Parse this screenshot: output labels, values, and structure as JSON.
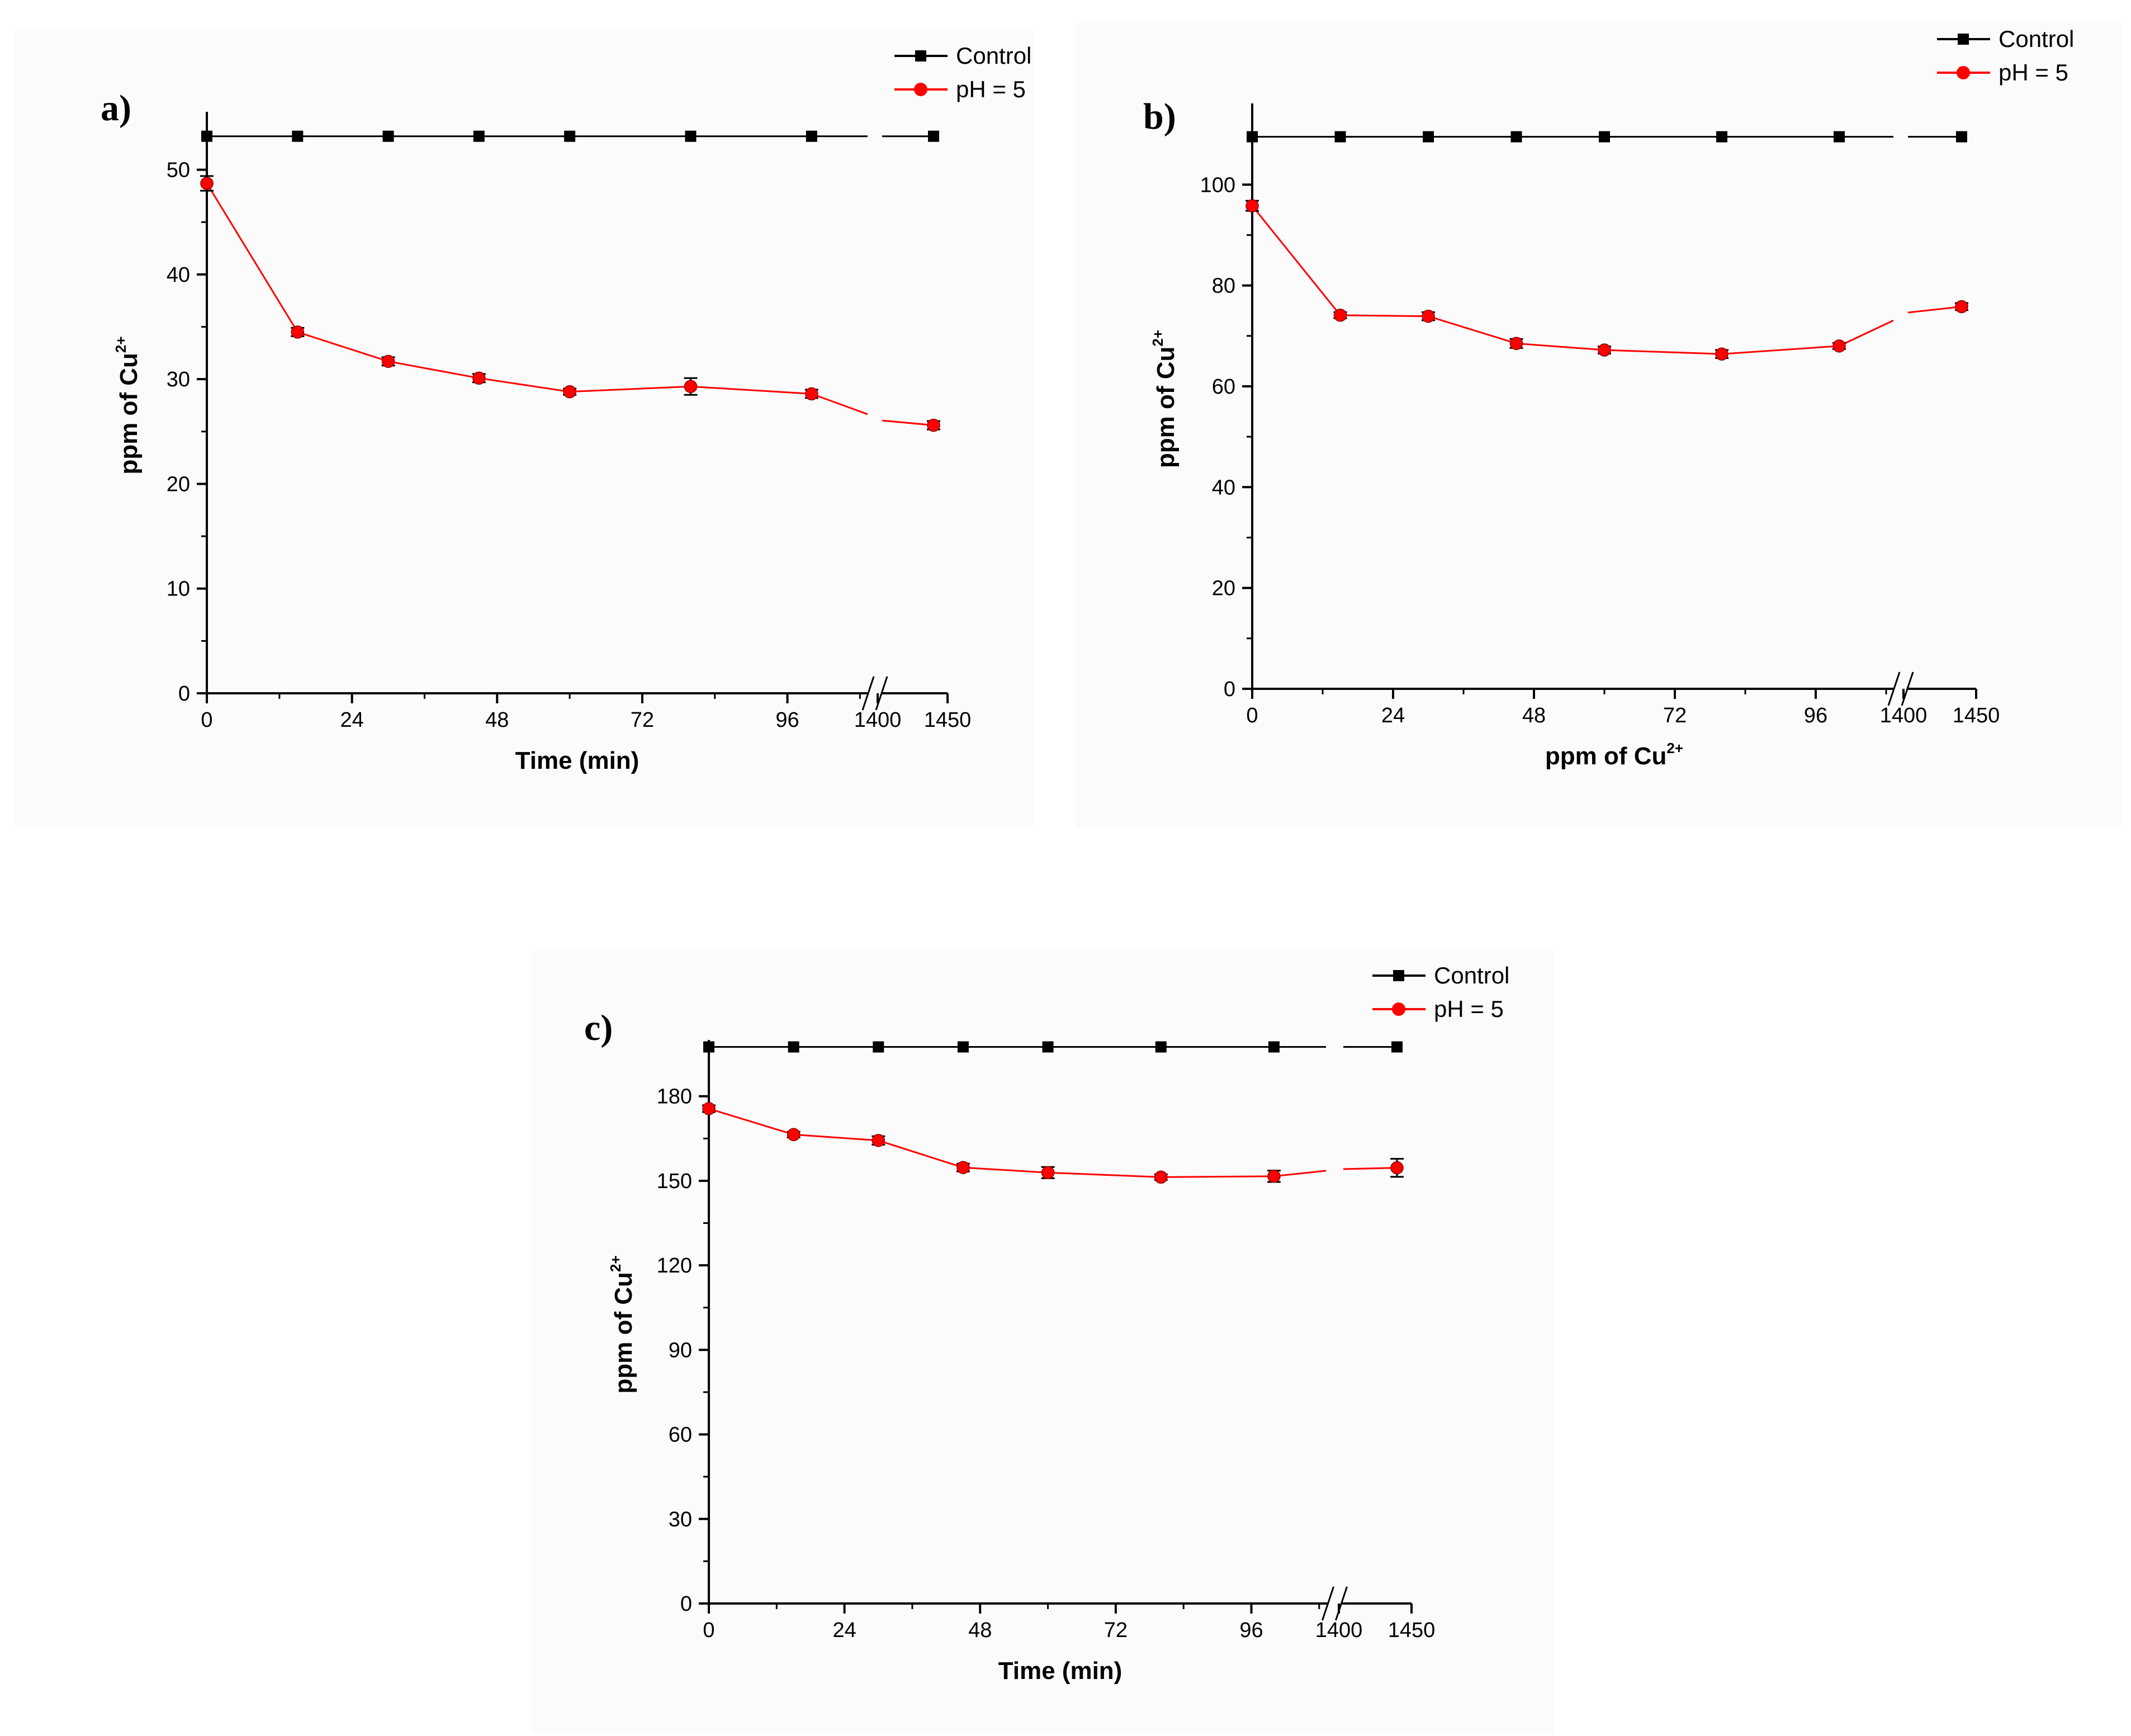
{
  "chart_data": [
    {
      "type": "line",
      "panel_label": "a)",
      "title": "",
      "xlabel": "Time (min)",
      "ylabel_main": "ppm of Cu",
      "ylabel_sup": "2+",
      "xlabel_sup": "",
      "x_axis_break": true,
      "x": [
        0,
        15,
        30,
        45,
        60,
        80,
        100,
        1440
      ],
      "xticks": [
        {
          "value": 0,
          "label": "0"
        },
        {
          "value": 24,
          "label": "24"
        },
        {
          "value": 48,
          "label": "48"
        },
        {
          "value": 72,
          "label": "72"
        },
        {
          "value": 96,
          "label": "96"
        },
        {
          "value": 1400,
          "label": "1400"
        },
        {
          "value": 1450,
          "label": "1450"
        }
      ],
      "ylim": [
        0,
        55
      ],
      "yticks": [
        0,
        10,
        20,
        30,
        40,
        50
      ],
      "legend_position": "top-right",
      "series": [
        {
          "name": "Control",
          "color": "#000000",
          "marker": "square",
          "values": [
            53.2,
            53.2,
            53.2,
            53.2,
            53.2,
            53.2,
            53.2,
            53.2
          ],
          "errors": [
            0,
            0,
            0,
            0,
            0,
            0,
            0,
            0
          ]
        },
        {
          "name": "pH = 5",
          "color": "#ff0000",
          "marker": "circle",
          "values": [
            48.7,
            34.5,
            31.7,
            30.1,
            28.8,
            29.3,
            28.6,
            25.6
          ],
          "errors": [
            0.7,
            0.4,
            0.4,
            0.4,
            0.3,
            0.8,
            0.4,
            0.4
          ]
        }
      ]
    },
    {
      "type": "line",
      "panel_label": "b)",
      "title": "",
      "xlabel": "ppm of Cu",
      "xlabel_sup": "2+",
      "ylabel_main": "ppm of Cu",
      "ylabel_sup": "2+",
      "x_axis_break": true,
      "x": [
        0,
        15,
        30,
        45,
        60,
        80,
        100,
        1440
      ],
      "xticks": [
        {
          "value": 0,
          "label": "0"
        },
        {
          "value": 24,
          "label": "24"
        },
        {
          "value": 48,
          "label": "48"
        },
        {
          "value": 72,
          "label": "72"
        },
        {
          "value": 96,
          "label": "96"
        },
        {
          "value": 1400,
          "label": "1400"
        },
        {
          "value": 1450,
          "label": "1450"
        }
      ],
      "ylim": [
        0,
        115
      ],
      "yticks": [
        0,
        20,
        40,
        60,
        80,
        100
      ],
      "legend_position": "top-right",
      "series": [
        {
          "name": "Control",
          "color": "#000000",
          "marker": "square",
          "values": [
            109.5,
            109.5,
            109.5,
            109.5,
            109.5,
            109.5,
            109.5,
            109.5
          ],
          "errors": [
            0,
            0,
            0,
            0,
            0,
            0,
            0,
            0
          ]
        },
        {
          "name": "pH = 5",
          "color": "#ff0000",
          "marker": "circle",
          "values": [
            95.8,
            74.1,
            73.9,
            68.5,
            67.2,
            66.4,
            68.0,
            75.8
          ],
          "errors": [
            1.0,
            0.6,
            0.8,
            0.9,
            0.7,
            0.8,
            0.6,
            0.7
          ]
        }
      ]
    },
    {
      "type": "line",
      "panel_label": "c)",
      "title": "",
      "xlabel": "Time (min)",
      "xlabel_sup": "",
      "ylabel_main": "ppm of Cu",
      "ylabel_sup": "2+",
      "x_axis_break": true,
      "x": [
        0,
        15,
        30,
        45,
        60,
        80,
        100,
        1440
      ],
      "xticks": [
        {
          "value": 0,
          "label": "0"
        },
        {
          "value": 24,
          "label": "24"
        },
        {
          "value": 48,
          "label": "48"
        },
        {
          "value": 72,
          "label": "72"
        },
        {
          "value": 96,
          "label": "96"
        },
        {
          "value": 1400,
          "label": "1400"
        },
        {
          "value": 1450,
          "label": "1450"
        }
      ],
      "ylim": [
        0,
        198
      ],
      "yticks": [
        0,
        30,
        60,
        90,
        120,
        150,
        180
      ],
      "legend_position": "top-right",
      "series": [
        {
          "name": "Control",
          "color": "#000000",
          "marker": "square",
          "values": [
            197.5,
            197.5,
            197.5,
            197.5,
            197.5,
            197.5,
            197.5,
            197.5
          ],
          "errors": [
            0,
            0,
            0,
            0,
            0,
            0,
            0,
            0
          ]
        },
        {
          "name": "pH = 5",
          "color": "#ff0000",
          "marker": "circle",
          "values": [
            175.6,
            166.4,
            164.3,
            154.7,
            152.9,
            151.3,
            151.6,
            154.6
          ],
          "errors": [
            1.2,
            1.0,
            1.5,
            1.4,
            2.0,
            1.0,
            2.0,
            3.2
          ]
        }
      ]
    }
  ]
}
